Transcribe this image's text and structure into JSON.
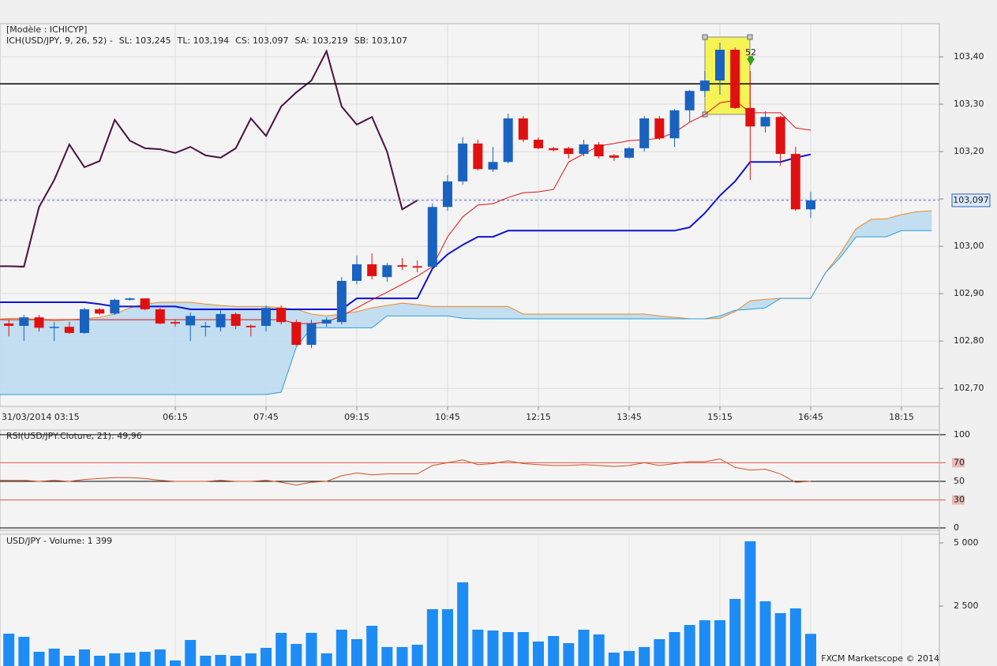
{
  "chart_data": [
    {
      "type": "candlestick",
      "model_label": "[Modèle : ICHICYP]",
      "indicator_label": "ICH(USD/JPY, 9, 26, 52) -",
      "categories": [
        "31/03/2014 03:15",
        null,
        null,
        null,
        null,
        null,
        null,
        null,
        null,
        null,
        null,
        null,
        "06:15",
        null,
        null,
        null,
        null,
        null,
        "07:45",
        null,
        null,
        null,
        null,
        null,
        "09:15",
        null,
        null,
        null,
        null,
        null,
        "10:45",
        null,
        null,
        null,
        null,
        null,
        "12:15",
        null,
        null,
        null,
        null,
        null,
        "13:45",
        null,
        null,
        null,
        null,
        null,
        "15:15",
        null,
        null,
        null,
        null,
        null,
        "16:45",
        null,
        null,
        null,
        null,
        null,
        "18:15",
        null,
        null
      ],
      "open": [
        null,
        102.837,
        102.832,
        102.85,
        102.828,
        102.83,
        102.817,
        102.867,
        102.858,
        102.887,
        102.89,
        102.867,
        102.84,
        102.833,
        102.829,
        102.829,
        102.857,
        102.832,
        102.832,
        102.87,
        102.84,
        102.792,
        102.837,
        102.84,
        102.927,
        102.962,
        102.935,
        102.96,
        102.958,
        102.957,
        103.083,
        103.137,
        103.217,
        103.162,
        103.178,
        103.27,
        103.225,
        103.207,
        103.207,
        103.195,
        103.215,
        103.192,
        103.187,
        103.207,
        103.27,
        103.228,
        103.287,
        103.328,
        103.35,
        103.415,
        103.292,
        103.253,
        103.273,
        103.195,
        103.078,
        null,
        null,
        null,
        null,
        null,
        null,
        null,
        null
      ],
      "high": [
        null,
        102.845,
        102.855,
        102.855,
        102.84,
        102.84,
        102.87,
        102.87,
        102.89,
        102.892,
        102.89,
        102.87,
        102.845,
        102.86,
        102.84,
        102.865,
        102.86,
        102.835,
        102.875,
        102.875,
        102.845,
        102.845,
        102.85,
        102.935,
        102.98,
        102.985,
        102.965,
        102.975,
        102.97,
        103.09,
        103.15,
        103.23,
        103.225,
        103.21,
        103.28,
        103.275,
        103.23,
        103.21,
        103.21,
        103.225,
        103.22,
        103.195,
        103.21,
        103.275,
        103.275,
        103.29,
        103.33,
        103.37,
        103.43,
        103.42,
        103.37,
        103.285,
        103.275,
        103.21,
        103.115,
        null,
        null,
        null,
        null,
        null,
        null,
        null,
        null
      ],
      "low": [
        null,
        102.81,
        102.8,
        102.82,
        102.8,
        102.815,
        102.815,
        102.855,
        102.855,
        102.885,
        102.865,
        102.835,
        102.83,
        102.8,
        102.81,
        102.82,
        102.825,
        102.81,
        102.82,
        102.835,
        102.79,
        102.785,
        102.83,
        102.835,
        102.92,
        102.93,
        102.925,
        102.95,
        102.945,
        102.955,
        103.075,
        103.13,
        103.16,
        103.157,
        103.175,
        103.22,
        103.205,
        103.2,
        103.185,
        103.19,
        103.185,
        103.18,
        103.185,
        103.2,
        103.225,
        103.21,
        103.262,
        103.315,
        103.32,
        103.29,
        103.14,
        103.24,
        103.17,
        103.075,
        103.06,
        null,
        null,
        null,
        null,
        null,
        null,
        null,
        null
      ],
      "close": [
        null,
        102.832,
        102.85,
        102.828,
        102.83,
        102.817,
        102.867,
        102.858,
        102.887,
        102.89,
        102.867,
        102.837,
        102.837,
        102.853,
        102.832,
        102.857,
        102.832,
        102.829,
        102.87,
        102.84,
        102.792,
        102.837,
        102.845,
        102.927,
        102.962,
        102.937,
        102.96,
        102.957,
        102.955,
        103.083,
        103.137,
        103.217,
        103.163,
        103.178,
        103.27,
        103.225,
        103.207,
        103.203,
        103.195,
        103.215,
        103.19,
        103.187,
        103.207,
        103.27,
        103.228,
        103.287,
        103.328,
        103.35,
        103.415,
        103.292,
        103.253,
        103.273,
        103.195,
        103.078,
        103.097,
        null,
        null,
        null,
        null,
        null,
        null,
        null,
        null
      ],
      "up_color": "#1a62c0",
      "down_color": "#e01010",
      "series": [
        {
          "name": "SL: 103,245",
          "color": "#e01010",
          "width": 1,
          "values": [
            102.845,
            102.845,
            102.845,
            102.845,
            102.845,
            102.845,
            102.845,
            102.845,
            102.845,
            102.845,
            102.845,
            102.845,
            102.845,
            102.845,
            102.845,
            102.845,
            102.845,
            102.845,
            102.845,
            102.845,
            102.837,
            102.837,
            102.84,
            102.853,
            102.87,
            102.887,
            102.903,
            102.92,
            102.937,
            102.957,
            103.02,
            103.062,
            103.087,
            103.09,
            103.103,
            103.113,
            103.115,
            103.12,
            103.178,
            103.195,
            103.212,
            103.217,
            103.223,
            103.225,
            103.228,
            103.24,
            103.262,
            103.278,
            103.303,
            103.308,
            103.282,
            103.282,
            103.282,
            103.25,
            103.245,
            null,
            null,
            null,
            null,
            null,
            null,
            null,
            null
          ]
        },
        {
          "name": "TL: 103,194",
          "color": "#1010d0",
          "width": 2,
          "values": [
            102.882,
            102.882,
            102.882,
            102.882,
            102.882,
            102.882,
            102.882,
            102.878,
            102.873,
            102.873,
            102.873,
            102.873,
            102.873,
            102.867,
            102.867,
            102.867,
            102.867,
            102.867,
            102.867,
            102.867,
            102.867,
            102.867,
            102.867,
            102.867,
            102.89,
            102.89,
            102.89,
            102.89,
            102.89,
            102.953,
            102.983,
            103.003,
            103.02,
            103.02,
            103.033,
            103.033,
            103.033,
            103.033,
            103.033,
            103.033,
            103.033,
            103.033,
            103.033,
            103.033,
            103.033,
            103.033,
            103.04,
            103.07,
            103.107,
            103.137,
            103.178,
            103.178,
            103.178,
            103.187,
            103.194,
            null,
            null,
            null,
            null,
            null,
            null,
            null,
            null
          ]
        },
        {
          "name": "CS: 103,097",
          "color": "#4a1040",
          "width": 2,
          "values": [
            102.958,
            102.958,
            102.957,
            103.083,
            103.14,
            103.215,
            103.167,
            103.18,
            103.267,
            103.223,
            103.207,
            103.205,
            103.197,
            103.21,
            103.192,
            103.187,
            103.207,
            103.27,
            103.233,
            103.295,
            103.325,
            103.35,
            103.412,
            103.295,
            103.257,
            103.273,
            103.2,
            103.078,
            103.097,
            null,
            null,
            null,
            null,
            null,
            null,
            null,
            null,
            null,
            null,
            null,
            null,
            null,
            null,
            null,
            null,
            null,
            null,
            null,
            null,
            null,
            null,
            null,
            null,
            null,
            null,
            null,
            null,
            null,
            null,
            null,
            null,
            null,
            null
          ]
        },
        {
          "name": "SA: 103,219",
          "color": "#f08a20",
          "width": 1,
          "values": [
            102.845,
            102.848,
            102.848,
            102.845,
            102.843,
            102.845,
            102.847,
            102.85,
            102.857,
            102.87,
            102.878,
            102.882,
            102.882,
            102.882,
            102.878,
            102.875,
            102.873,
            102.873,
            102.873,
            102.87,
            102.867,
            102.857,
            102.853,
            102.857,
            102.862,
            102.87,
            102.875,
            102.88,
            102.877,
            102.873,
            102.873,
            102.873,
            102.873,
            102.873,
            102.873,
            102.857,
            102.857,
            102.857,
            102.857,
            102.857,
            102.857,
            102.857,
            102.857,
            102.857,
            102.853,
            102.85,
            102.847,
            102.847,
            102.848,
            102.862,
            102.885,
            102.888,
            102.89,
            102.89,
            102.89,
            102.945,
            102.987,
            103.037,
            103.057,
            103.058,
            103.067,
            103.073,
            103.075
          ]
        },
        {
          "name": "SB: 103,107",
          "color": "#2a9fe0",
          "width": 1,
          "values": [
            102.687,
            102.687,
            102.687,
            102.687,
            102.687,
            102.687,
            102.687,
            102.687,
            102.687,
            102.687,
            102.687,
            102.687,
            102.687,
            102.687,
            102.687,
            102.687,
            102.687,
            102.687,
            102.687,
            102.692,
            102.787,
            102.828,
            102.828,
            102.828,
            102.828,
            102.828,
            102.853,
            102.853,
            102.853,
            102.853,
            102.853,
            102.848,
            102.847,
            102.847,
            102.847,
            102.847,
            102.847,
            102.847,
            102.847,
            102.847,
            102.847,
            102.847,
            102.847,
            102.847,
            102.847,
            102.847,
            102.847,
            102.847,
            102.853,
            102.865,
            102.867,
            102.87,
            102.89,
            102.89,
            102.89,
            102.945,
            102.978,
            103.02,
            103.02,
            103.02,
            103.033,
            103.033,
            103.033
          ]
        }
      ],
      "cloud_color": "#bcdcf0",
      "hline": 103.343,
      "last_price": {
        "value": 103.097,
        "label": "103,097"
      },
      "annotation": "52",
      "ylim": [
        102.662,
        103.47
      ],
      "yticks": [
        {
          "value": 102.7,
          "label": "102,70"
        },
        {
          "value": 102.8,
          "label": "102,80"
        },
        {
          "value": 102.9,
          "label": "102,90"
        },
        {
          "value": 103.0,
          "label": "103,00"
        },
        {
          "value": 103.1,
          "label": "103,10"
        },
        {
          "value": 103.2,
          "label": "103,20"
        },
        {
          "value": 103.3,
          "label": "103,30"
        },
        {
          "value": 103.4,
          "label": "103,40"
        }
      ],
      "grid": true
    },
    {
      "type": "line",
      "title": "RSI(USD/JPY:Cloture, 21): 49,96",
      "color": "#d2501e",
      "values": [
        51,
        51,
        51,
        50,
        51,
        50,
        52,
        53,
        54,
        54,
        53,
        51,
        50,
        50,
        50,
        51,
        50,
        50,
        51,
        49,
        46,
        49,
        50,
        56,
        59,
        57,
        58,
        58,
        58,
        67,
        70,
        73,
        68,
        69,
        72,
        69,
        68,
        67,
        67,
        68,
        67,
        66,
        67,
        70,
        67,
        69,
        71,
        71,
        74,
        65,
        62,
        63,
        58,
        49,
        50,
        null,
        null,
        null,
        null,
        null,
        null,
        null,
        null
      ],
      "ylim": [
        -2.5,
        105
      ],
      "yticks": [
        0,
        30,
        50,
        70,
        100
      ],
      "ytick_colors": [
        "#000000",
        "#e05a4a",
        "#000000",
        "#e05a4a",
        "#000000"
      ]
    },
    {
      "type": "bar",
      "title": "USD/JPY - Volume: 1 399",
      "color": "#1e8cf5",
      "values": [
        null,
        1406,
        1281,
        688,
        813,
        531,
        781,
        531,
        625,
        656,
        688,
        781,
        344,
        1156,
        531,
        563,
        531,
        625,
        844,
        1438,
        1000,
        1438,
        625,
        1563,
        1188,
        1719,
        875,
        875,
        969,
        2375,
        2375,
        3438,
        1563,
        1531,
        1469,
        1469,
        1094,
        1313,
        1031,
        1563,
        1375,
        656,
        719,
        875,
        1188,
        1469,
        1750,
        1938,
        1938,
        2781,
        5063,
        2688,
        2219,
        2406,
        1399,
        null,
        null,
        null,
        null,
        null,
        null,
        null,
        null
      ],
      "ylim": [
        0,
        5250
      ],
      "yticks": [
        {
          "value": 2500,
          "label": "2 500"
        },
        {
          "value": 5000,
          "label": "5 000"
        }
      ]
    }
  ],
  "footer": "FXCM Marketscope © 2014"
}
